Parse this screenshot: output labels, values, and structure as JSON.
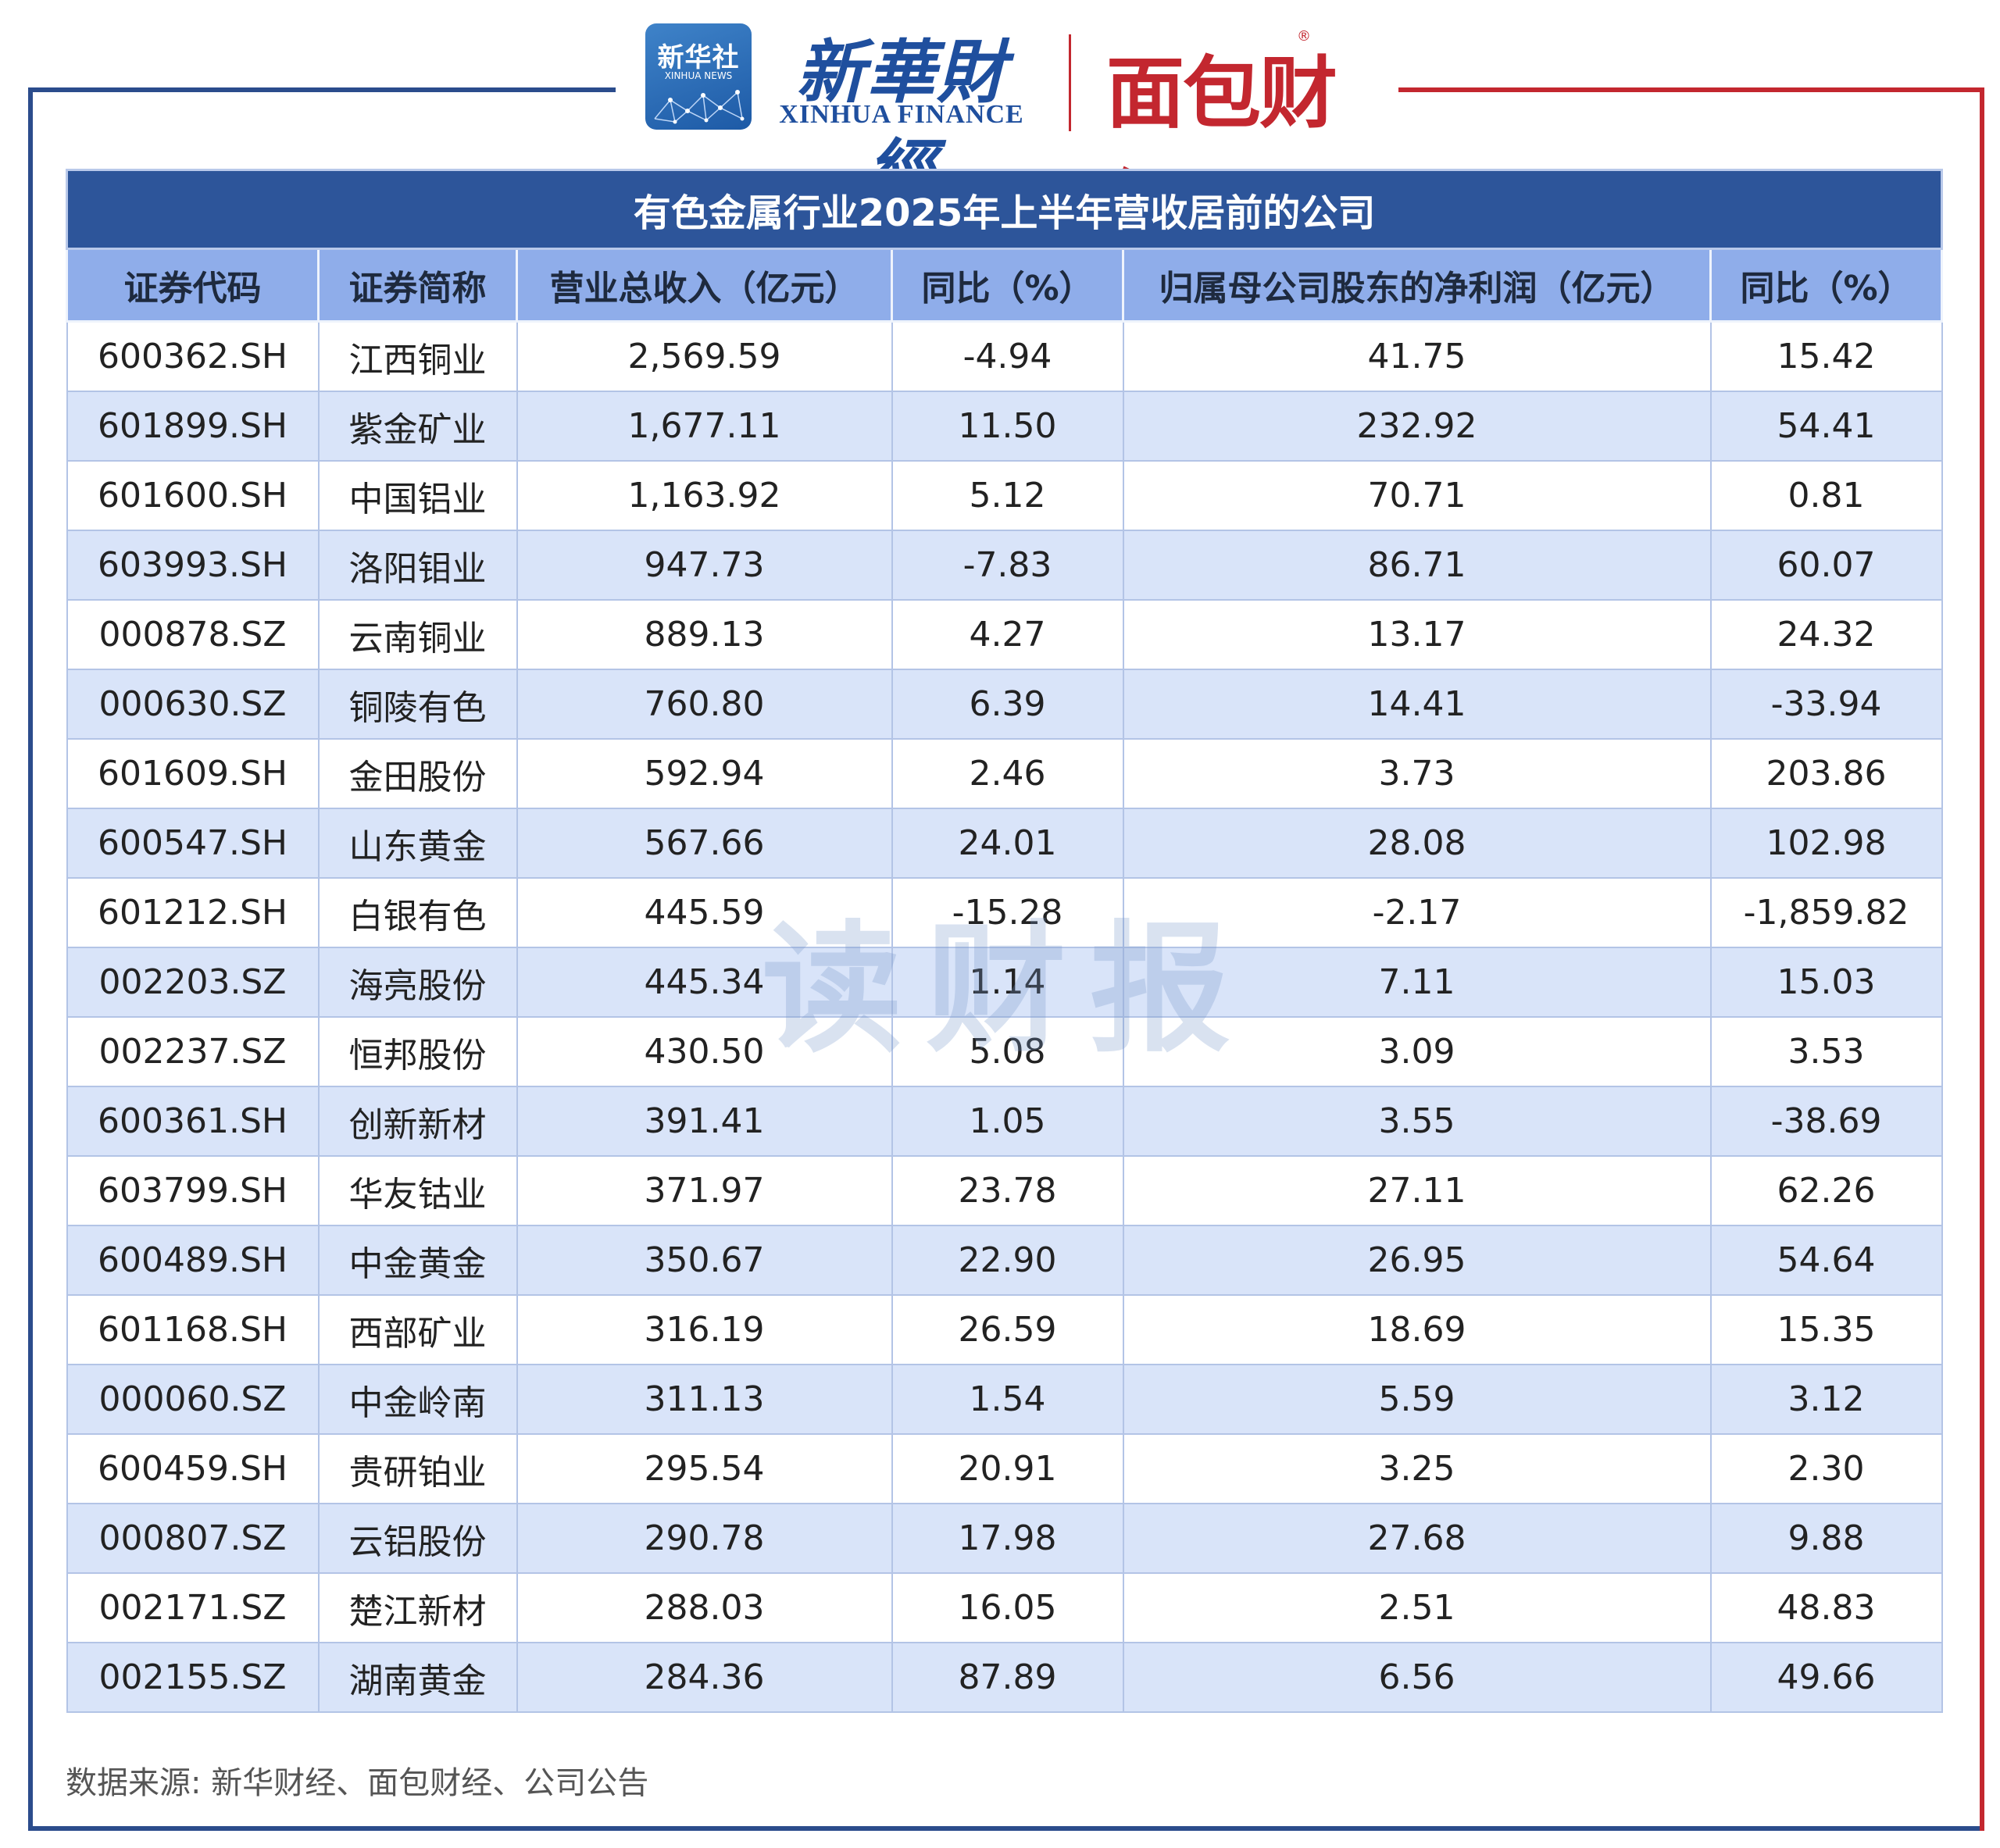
{
  "header": {
    "xinhua_badge_cn": "新华社",
    "xinhua_badge_en": "XINHUA NEWS",
    "xinhua_finance_cn": "新華財經",
    "xinhua_finance_en": "XINHUA FINANCE",
    "mianbao_finance": "面包财经",
    "registered_mark": "®"
  },
  "table": {
    "title": "有色金属行业2025年上半年营收居前的公司",
    "columns": [
      "证券代码",
      "证券简称",
      "营业总收入（亿元）",
      "同比（%）",
      "归属母公司股东的净利润（亿元）",
      "同比（%）"
    ],
    "rows": [
      [
        "600362.SH",
        "江西铜业",
        "2,569.59",
        "-4.94",
        "41.75",
        "15.42"
      ],
      [
        "601899.SH",
        "紫金矿业",
        "1,677.11",
        "11.50",
        "232.92",
        "54.41"
      ],
      [
        "601600.SH",
        "中国铝业",
        "1,163.92",
        "5.12",
        "70.71",
        "0.81"
      ],
      [
        "603993.SH",
        "洛阳钼业",
        "947.73",
        "-7.83",
        "86.71",
        "60.07"
      ],
      [
        "000878.SZ",
        "云南铜业",
        "889.13",
        "4.27",
        "13.17",
        "24.32"
      ],
      [
        "000630.SZ",
        "铜陵有色",
        "760.80",
        "6.39",
        "14.41",
        "-33.94"
      ],
      [
        "601609.SH",
        "金田股份",
        "592.94",
        "2.46",
        "3.73",
        "203.86"
      ],
      [
        "600547.SH",
        "山东黄金",
        "567.66",
        "24.01",
        "28.08",
        "102.98"
      ],
      [
        "601212.SH",
        "白银有色",
        "445.59",
        "-15.28",
        "-2.17",
        "-1,859.82"
      ],
      [
        "002203.SZ",
        "海亮股份",
        "445.34",
        "1.14",
        "7.11",
        "15.03"
      ],
      [
        "002237.SZ",
        "恒邦股份",
        "430.50",
        "5.08",
        "3.09",
        "3.53"
      ],
      [
        "600361.SH",
        "创新新材",
        "391.41",
        "1.05",
        "3.55",
        "-38.69"
      ],
      [
        "603799.SH",
        "华友钴业",
        "371.97",
        "23.78",
        "27.11",
        "62.26"
      ],
      [
        "600489.SH",
        "中金黄金",
        "350.67",
        "22.90",
        "26.95",
        "54.64"
      ],
      [
        "601168.SH",
        "西部矿业",
        "316.19",
        "26.59",
        "18.69",
        "15.35"
      ],
      [
        "000060.SZ",
        "中金岭南",
        "311.13",
        "1.54",
        "5.59",
        "3.12"
      ],
      [
        "600459.SH",
        "贵研铂业",
        "295.54",
        "20.91",
        "3.25",
        "2.30"
      ],
      [
        "000807.SZ",
        "云铝股份",
        "290.78",
        "17.98",
        "27.68",
        "9.88"
      ],
      [
        "002171.SZ",
        "楚江新材",
        "288.03",
        "16.05",
        "2.51",
        "48.83"
      ],
      [
        "002155.SZ",
        "湖南黄金",
        "284.36",
        "87.89",
        "6.56",
        "49.66"
      ]
    ]
  },
  "watermark": "读财报",
  "source": "数据来源: 新华财经、面包财经、公司公告",
  "colors": {
    "title_bg": "#2d559a",
    "header_bg": "#8fadea",
    "stripe_bg": "#d9e4f9",
    "frame_blue": "#2b4c8c",
    "frame_red": "#c3272f"
  }
}
